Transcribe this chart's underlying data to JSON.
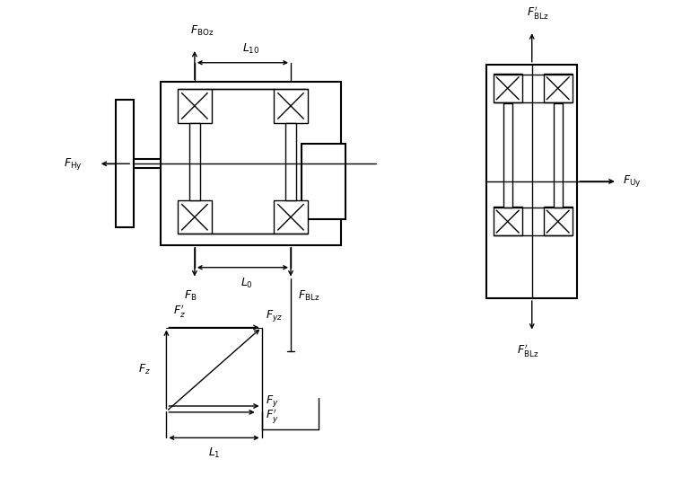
{
  "bg_color": "#ffffff",
  "line_color": "#000000",
  "fig_width": 7.6,
  "fig_height": 5.31,
  "dpi": 100
}
